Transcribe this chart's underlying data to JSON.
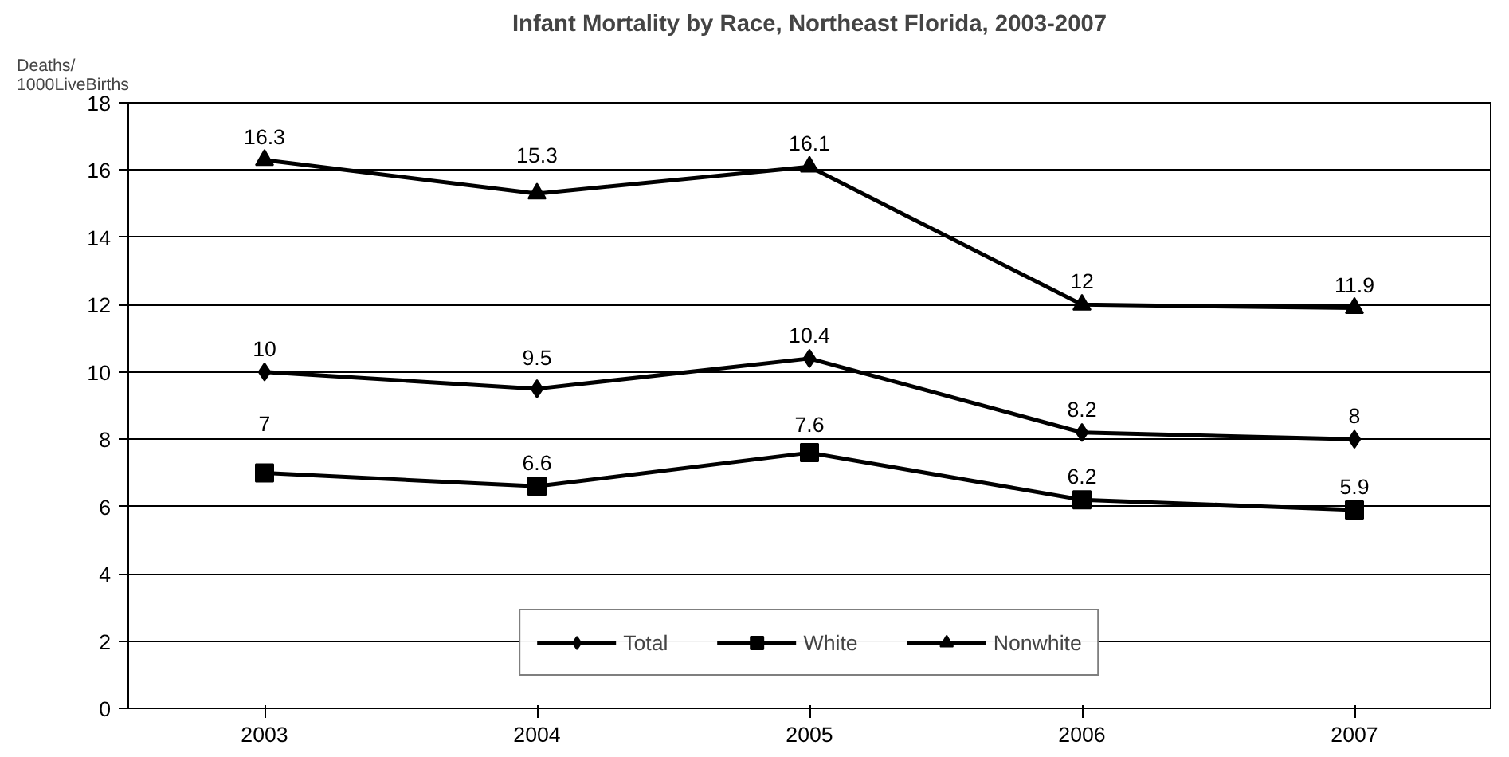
{
  "chart_data": {
    "type": "line",
    "title": "Infant Mortality by Race, Northeast Florida, 2003-2007",
    "ylabel": "Deaths/\n1000LiveBirths",
    "categories": [
      "2003",
      "2004",
      "2005",
      "2006",
      "2007"
    ],
    "series": [
      {
        "name": "Total",
        "color": "#000000",
        "marker": "diamond",
        "values": [
          10,
          9.5,
          10.4,
          8.2,
          8
        ]
      },
      {
        "name": "White",
        "color": "#000000",
        "marker": "square",
        "values": [
          7,
          6.6,
          7.6,
          6.2,
          5.9
        ]
      },
      {
        "name": "Nonwhite",
        "color": "#000000",
        "marker": "triangle",
        "values": [
          16.3,
          15.3,
          16.1,
          12,
          11.9
        ]
      }
    ],
    "ylim": [
      0,
      18
    ],
    "yticks": [
      0,
      2,
      4,
      6,
      8,
      10,
      12,
      14,
      16,
      18
    ],
    "grid": "y",
    "legend": "bottom",
    "data_labels": true,
    "line_style": "solid"
  }
}
